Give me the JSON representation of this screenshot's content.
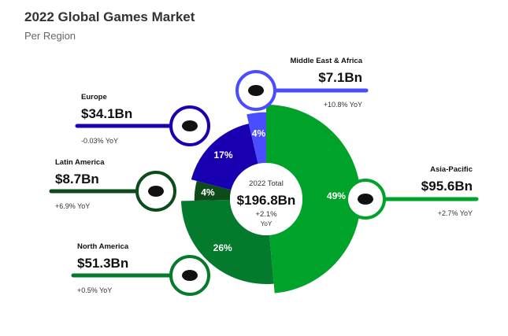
{
  "header": {
    "title": "2022 Global Games Market",
    "subtitle": "Per Region"
  },
  "center": {
    "caption": "2022 Total",
    "total": "$196.8Bn",
    "growth": "+2.1%",
    "growth_unit": "YoY"
  },
  "chart_data": {
    "type": "pie",
    "variant": "donut",
    "title": "2022 Global Games Market",
    "subtitle": "Per Region",
    "slices": [
      {
        "name": "Asia-Pacific",
        "value_label": "$95.6Bn",
        "value": 95.6,
        "pct_label": "49%",
        "yoy": "+2.7% YoY",
        "color": "#00A32A",
        "radius": 1.0,
        "icon": "asia-map-icon"
      },
      {
        "name": "North America",
        "value_label": "$51.3Bn",
        "value": 51.3,
        "pct_label": "26%",
        "yoy": "+0.5% YoY",
        "color": "#047A2C",
        "radius": 0.9,
        "icon": "north-america-map-icon"
      },
      {
        "name": "Latin America",
        "value_label": "$8.7Bn",
        "value": 8.7,
        "pct_label": "4%",
        "yoy": "+6.9% YoY",
        "color": "#0E4B1B",
        "radius": 0.76,
        "icon": "south-america-map-icon"
      },
      {
        "name": "Europe",
        "value_label": "$34.1Bn",
        "value": 34.1,
        "pct_label": "17%",
        "yoy": "-0.03% YoY",
        "color": "#1800B0",
        "radius": 0.82,
        "icon": "europe-map-icon"
      },
      {
        "name": "Middle East & Africa",
        "value_label": "$7.1Bn",
        "value": 7.1,
        "pct_label": "4%",
        "yoy": "+10.8% YoY",
        "color": "#4A4DFF",
        "radius": 0.92,
        "icon": "africa-map-icon"
      }
    ]
  }
}
